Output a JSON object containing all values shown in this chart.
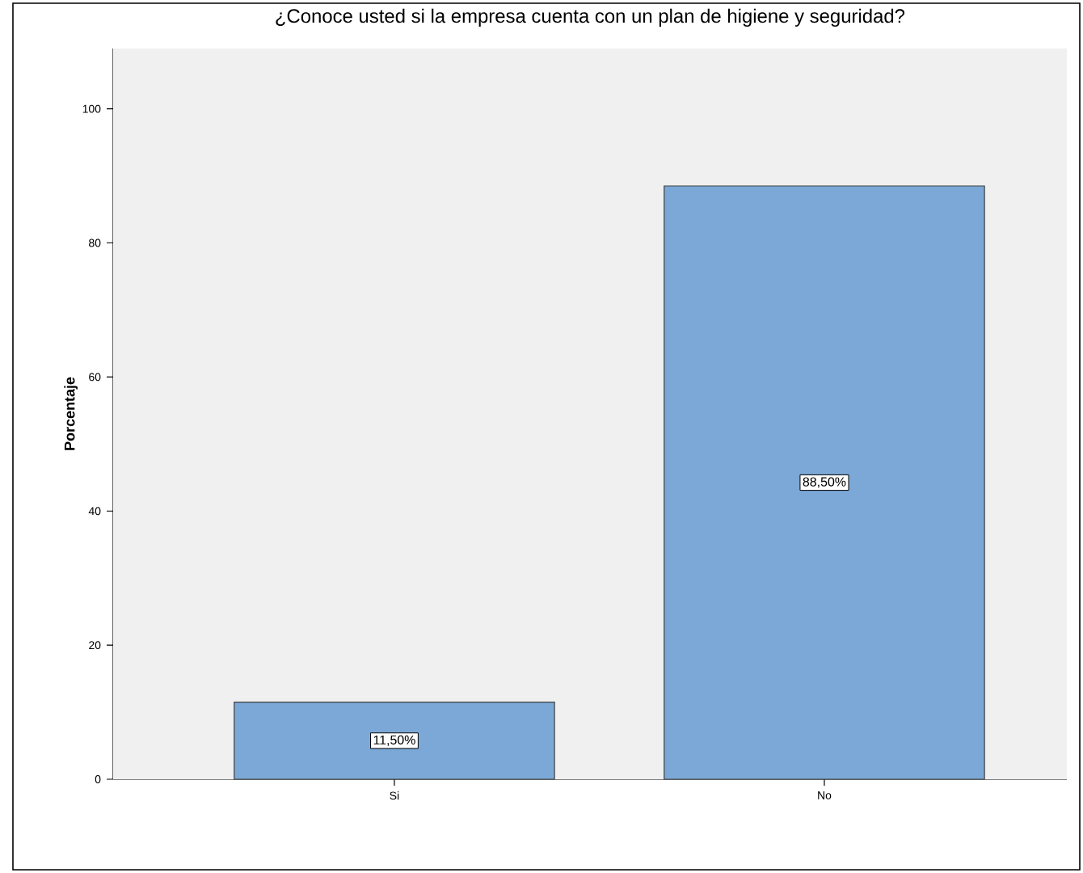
{
  "chart_data": {
    "type": "bar",
    "title": "¿Conoce usted si la empresa cuenta con un plan de higiene y seguridad?",
    "ylabel": "Porcentaje",
    "categories": [
      "Si",
      "No"
    ],
    "values": [
      11.5,
      88.5
    ],
    "value_labels": [
      "11,50%",
      "88,50%"
    ],
    "color": "#7ba8d7",
    "ylim": [
      0,
      109
    ],
    "yticks": [
      0,
      20,
      40,
      60,
      80,
      100
    ],
    "grid": false
  }
}
